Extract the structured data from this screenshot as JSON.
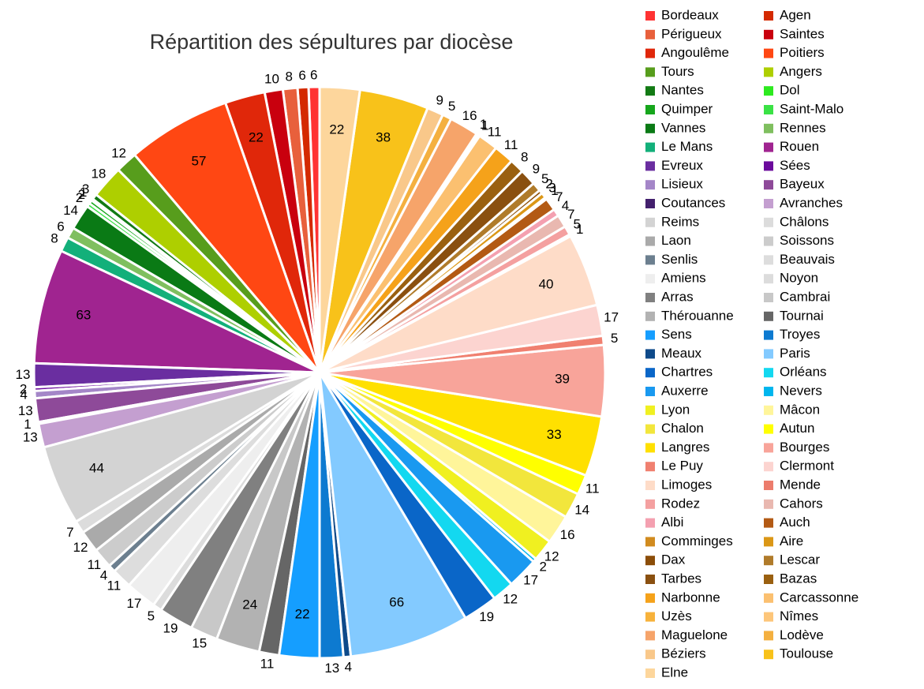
{
  "chart_data": {
    "type": "pie",
    "title": "Répartition des sépultures par diocèse",
    "categories": [
      "Bordeaux",
      "Agen",
      "Périgueux",
      "Saintes",
      "Angoulême",
      "Poitiers",
      "Tours",
      "Angers",
      "Nantes",
      "Dol",
      "Quimper",
      "Saint-Malo",
      "Vannes",
      "Rennes",
      "Le Mans",
      "Rouen",
      "Evreux",
      "Sées",
      "Lisieux",
      "Bayeux",
      "Coutances",
      "Avranches",
      "Reims",
      "Châlons",
      "Laon",
      "Soissons",
      "Senlis",
      "Beauvais",
      "Amiens",
      "Noyon",
      "Arras",
      "Cambrai",
      "Thérouanne",
      "Tournai",
      "Sens",
      "Troyes",
      "Meaux",
      "Paris",
      "Chartres",
      "Orléans",
      "Auxerre",
      "Nevers",
      "Lyon",
      "Mâcon",
      "Chalon",
      "Autun",
      "Langres",
      "Bourges",
      "Le Puy",
      "Clermont",
      "Limoges",
      "Mende",
      "Rodez",
      "Cahors",
      "Albi",
      "Auch",
      "Comminges",
      "Aire",
      "Dax",
      "Lescar",
      "Tarbes",
      "Bazas",
      "Narbonne",
      "Carcassonne",
      "Uzès",
      "Nîmes",
      "Maguelone",
      "Lodève",
      "Béziers",
      "Toulouse",
      "Elne"
    ],
    "values": [
      6,
      6,
      8,
      10,
      22,
      57,
      12,
      18,
      3,
      1,
      2,
      2,
      14,
      6,
      8,
      63,
      13,
      2,
      4,
      13,
      1,
      13,
      44,
      7,
      12,
      11,
      4,
      11,
      17,
      5,
      19,
      15,
      24,
      11,
      22,
      13,
      4,
      66,
      19,
      12,
      17,
      2,
      12,
      16,
      14,
      11,
      33,
      39,
      5,
      17,
      40,
      1,
      5,
      7,
      4,
      7,
      1,
      3,
      2,
      5,
      9,
      8,
      11,
      11,
      1,
      1,
      16,
      5,
      9,
      38,
      22
    ],
    "colors": [
      "#ff3333",
      "#d42a00",
      "#e8603c",
      "#c9000e",
      "#e0270a",
      "#ff4713",
      "#579d1c",
      "#aecf00",
      "#127a14",
      "#2dea1f",
      "#16a61c",
      "#3ae245",
      "#0a7a15",
      "#7fbf5f",
      "#13b07a",
      "#a02490",
      "#6a2ea0",
      "#6b0a9c",
      "#a486c8",
      "#8e4a99",
      "#43206d",
      "#c49fd0",
      "#d3d3d3",
      "#dcdcdc",
      "#aaaaaa",
      "#cccccc",
      "#6c7f8f",
      "#dddddd",
      "#eeeeee",
      "#dcdcdc",
      "#808080",
      "#c8c8c8",
      "#b2b2b2",
      "#666666",
      "#159eff",
      "#0d7ad0",
      "#0e4a8a",
      "#83caff",
      "#0a66c8",
      "#13d8f0",
      "#1999f0",
      "#00b6ee",
      "#f0f020",
      "#fff59a",
      "#f2e63c",
      "#ffff00",
      "#ffe000",
      "#f8a49a",
      "#f08070",
      "#fcd4d0",
      "#fedcc8",
      "#ec7c6c",
      "#f4a0a0",
      "#e9b8b0",
      "#f4a0b0",
      "#b35a14",
      "#d18b1f",
      "#db9716",
      "#8b4d08",
      "#b07b2a",
      "#8a5010",
      "#9a6010",
      "#f5a21a",
      "#fbc070",
      "#f7b23b",
      "#fdc67a",
      "#f6a46a",
      "#f4b040",
      "#f9c88a",
      "#f8c21a",
      "#fdd69c"
    ],
    "legend": "right"
  }
}
